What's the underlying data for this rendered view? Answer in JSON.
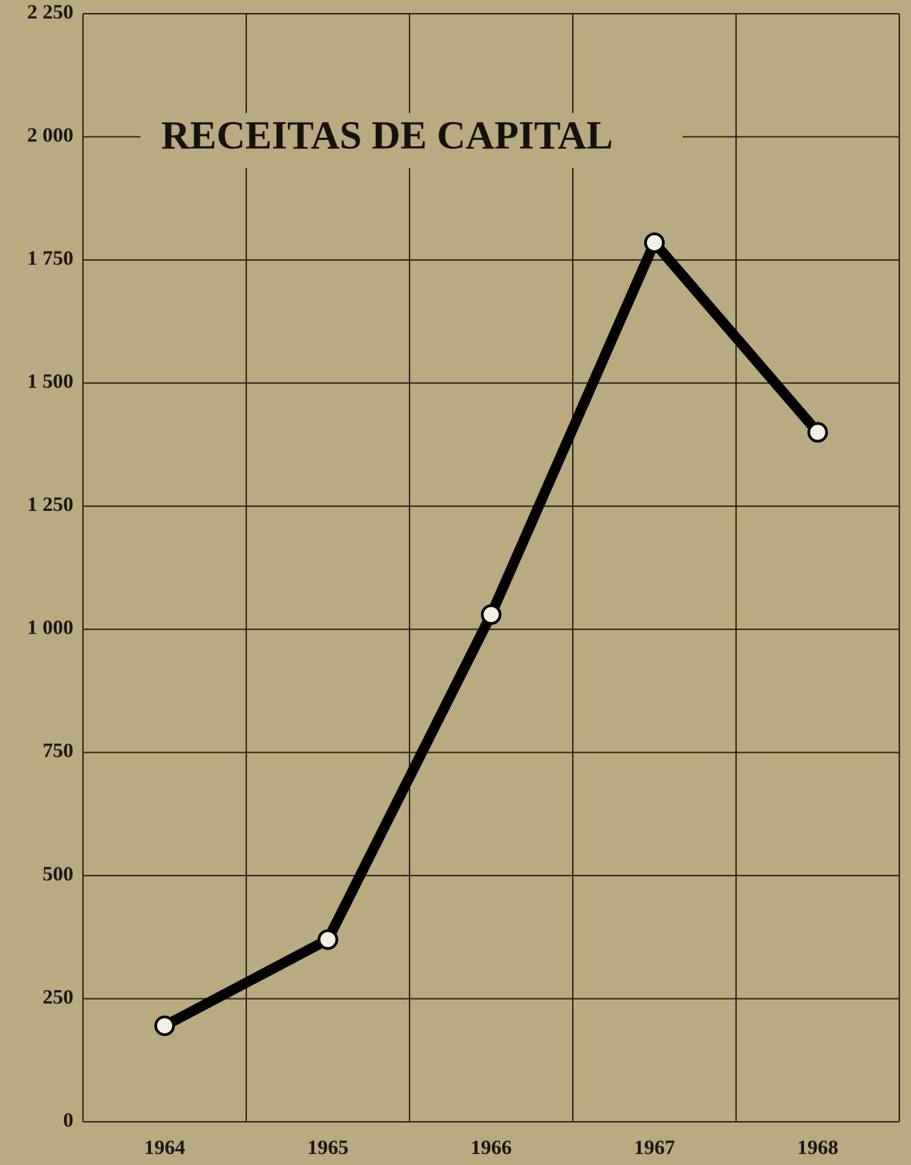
{
  "chart_data": {
    "type": "line",
    "title": "RECEITAS DE CAPITAL",
    "categories": [
      "1964",
      "1965",
      "1966",
      "1967",
      "1968"
    ],
    "series": [
      {
        "name": null,
        "color": "#000000",
        "values": [
          195,
          370,
          1030,
          1785,
          1400
        ]
      }
    ],
    "ylim": [
      0,
      2250
    ],
    "yticks": [
      0,
      250,
      500,
      750,
      {
        "value": 1000,
        "label": "1 000"
      },
      {
        "value": 1250,
        "label": "1 250"
      },
      {
        "value": 1500,
        "label": "1 500"
      },
      {
        "value": 1750,
        "label": "1 750"
      },
      {
        "value": 2000,
        "label": "2 000"
      },
      {
        "value": 2250,
        "label": "2 250"
      }
    ],
    "grid": true
  }
}
